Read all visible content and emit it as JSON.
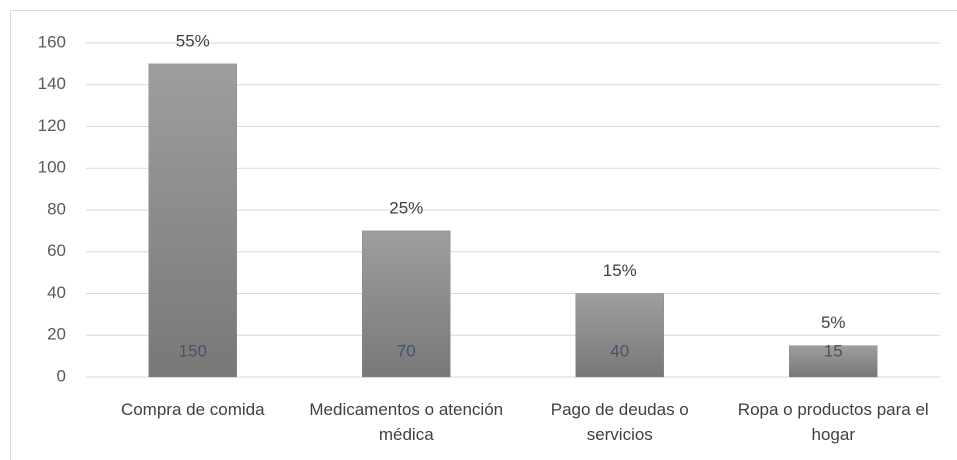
{
  "chart_data": {
    "type": "bar",
    "categories": [
      "Compra de comida",
      "Medicamentos o atención médica",
      "Pago de deudas o servicios",
      "Ropa o productos para el hogar"
    ],
    "values": [
      150,
      70,
      40,
      15
    ],
    "percent_labels": [
      "55%",
      "25%",
      "15%",
      "5%"
    ],
    "color": "#8c8c8c",
    "ylim": [
      0,
      160
    ],
    "yticks": [
      0,
      20,
      40,
      60,
      80,
      100,
      120,
      140,
      160
    ],
    "grid": true
  }
}
